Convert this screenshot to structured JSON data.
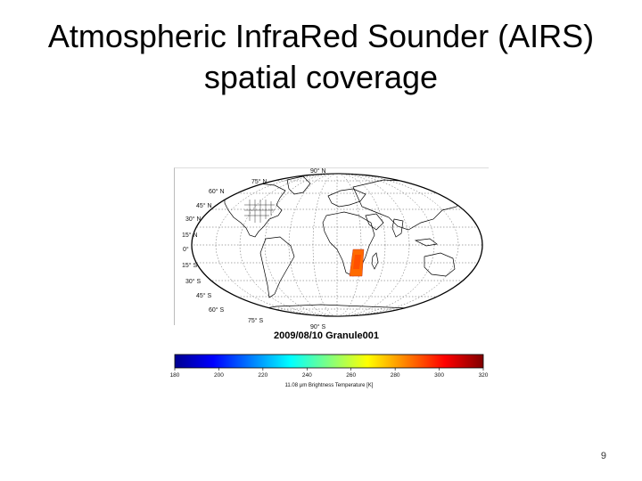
{
  "slide": {
    "title_line1": "Atmospheric InfraRed Sounder (AIRS)",
    "title_line2": "spatial coverage",
    "page_number": "9"
  },
  "map": {
    "projection": "Mollweide (global, ellipse)",
    "title": "2009/08/10 Granule001",
    "lat_labels": [
      "75° N",
      "60° N",
      "45° N",
      "30° N",
      "15° N",
      "0°",
      "15° S",
      "30° S",
      "45° S",
      "60° S",
      "75° S",
      "90° N",
      "90° S"
    ],
    "granule_region": "central Africa",
    "granule_color": "#ff6a00"
  },
  "colorbar": {
    "label": "11.08 μm Brightness Temperature [K]",
    "ticks": [
      "180",
      "200",
      "220",
      "240",
      "260",
      "280",
      "300",
      "320"
    ],
    "colors": [
      "#00008f",
      "#0000ff",
      "#0080ff",
      "#00ffff",
      "#80ff80",
      "#ffff00",
      "#ff8000",
      "#ff0000",
      "#800000"
    ]
  }
}
